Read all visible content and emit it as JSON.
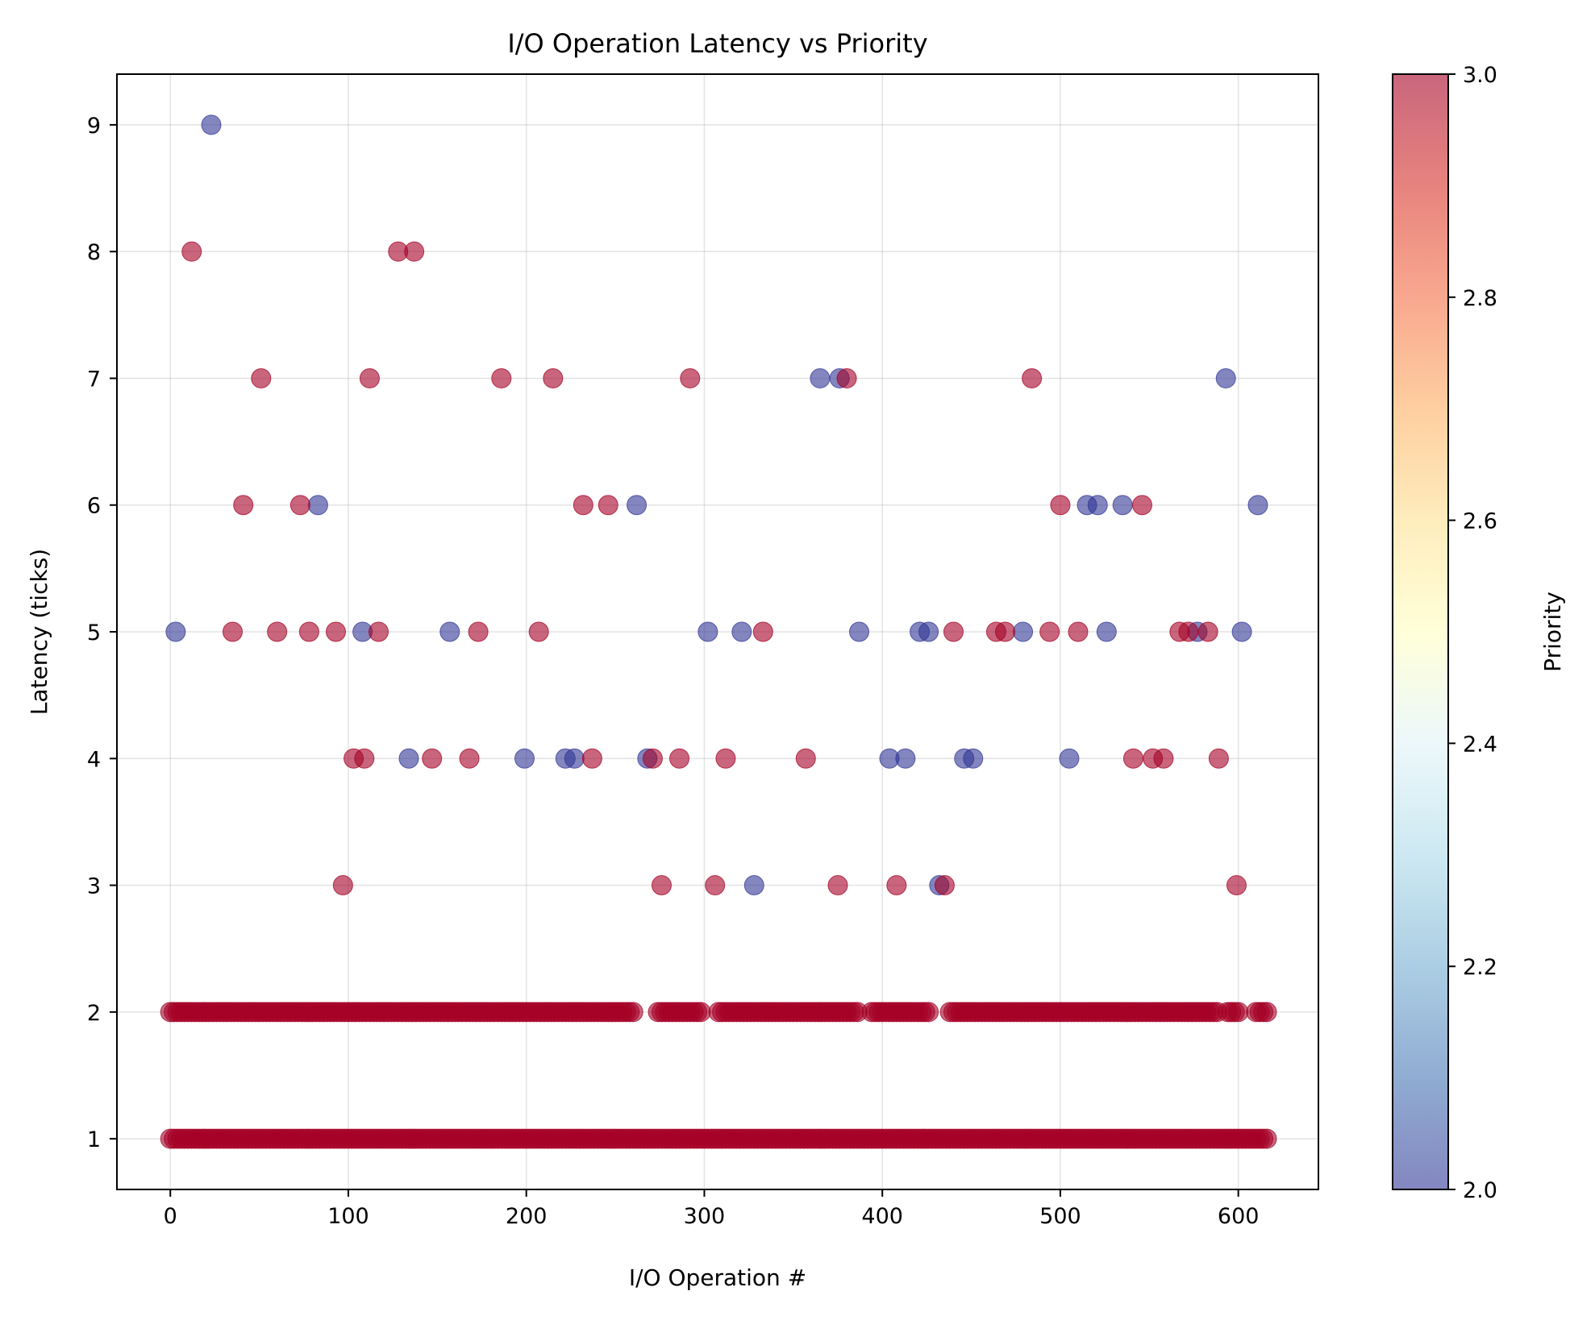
{
  "chart_data": {
    "type": "scatter",
    "title": "I/O Operation Latency vs Priority",
    "xlabel": "I/O Operation #",
    "ylabel": "Latency (ticks)",
    "xlim": [
      -30,
      645
    ],
    "ylim": [
      0.6,
      9.4
    ],
    "x_ticks": [
      0,
      100,
      200,
      300,
      400,
      500,
      600
    ],
    "y_ticks": [
      1,
      2,
      3,
      4,
      5,
      6,
      7,
      8,
      9
    ],
    "grid": true,
    "colorbar": {
      "label": "Priority",
      "min": 2.0,
      "max": 3.0,
      "ticks": [
        "2.0",
        "2.2",
        "2.4",
        "2.6",
        "2.8",
        "3.0"
      ],
      "colormap": "RdYlBu_r",
      "low_color": "#313695",
      "high_color": "#a50026"
    },
    "marker_alpha": 0.6,
    "color_scale": "priority",
    "series": [
      {
        "priority": 2,
        "color": "#313695",
        "points": [
          [
            3,
            5
          ],
          [
            23,
            9
          ],
          [
            83,
            6
          ],
          [
            108,
            5
          ],
          [
            134,
            4
          ],
          [
            157,
            5
          ],
          [
            199,
            4
          ],
          [
            222,
            4
          ],
          [
            227,
            4
          ],
          [
            262,
            6
          ],
          [
            268,
            4
          ],
          [
            302,
            5
          ],
          [
            321,
            5
          ],
          [
            328,
            3
          ],
          [
            365,
            7
          ],
          [
            376,
            7
          ],
          [
            387,
            5
          ],
          [
            404,
            4
          ],
          [
            413,
            4
          ],
          [
            421,
            5
          ],
          [
            426,
            5
          ],
          [
            432,
            3
          ],
          [
            446,
            4
          ],
          [
            451,
            4
          ],
          [
            479,
            5
          ],
          [
            505,
            4
          ],
          [
            515,
            6
          ],
          [
            521,
            6
          ],
          [
            526,
            5
          ],
          [
            535,
            6
          ],
          [
            577,
            5
          ],
          [
            593,
            7
          ],
          [
            602,
            5
          ],
          [
            611,
            6
          ]
        ]
      },
      {
        "priority": 3,
        "color": "#a50026",
        "points": [
          [
            12,
            8
          ],
          [
            35,
            5
          ],
          [
            41,
            6
          ],
          [
            51,
            7
          ],
          [
            60,
            5
          ],
          [
            73,
            6
          ],
          [
            78,
            5
          ],
          [
            93,
            5
          ],
          [
            97,
            3
          ],
          [
            103,
            4
          ],
          [
            109,
            4
          ],
          [
            112,
            7
          ],
          [
            117,
            5
          ],
          [
            128,
            8
          ],
          [
            137,
            8
          ],
          [
            147,
            4
          ],
          [
            168,
            4
          ],
          [
            173,
            5
          ],
          [
            186,
            7
          ],
          [
            207,
            5
          ],
          [
            215,
            7
          ],
          [
            232,
            6
          ],
          [
            237,
            4
          ],
          [
            246,
            6
          ],
          [
            271,
            4
          ],
          [
            276,
            3
          ],
          [
            286,
            4
          ],
          [
            292,
            7
          ],
          [
            306,
            3
          ],
          [
            312,
            4
          ],
          [
            333,
            5
          ],
          [
            357,
            4
          ],
          [
            375,
            3
          ],
          [
            380,
            7
          ],
          [
            408,
            3
          ],
          [
            435,
            3
          ],
          [
            440,
            5
          ],
          [
            464,
            5
          ],
          [
            469,
            5
          ],
          [
            484,
            7
          ],
          [
            494,
            5
          ],
          [
            500,
            6
          ],
          [
            510,
            5
          ],
          [
            541,
            4
          ],
          [
            546,
            6
          ],
          [
            552,
            4
          ],
          [
            558,
            4
          ],
          [
            567,
            5
          ],
          [
            572,
            5
          ],
          [
            583,
            5
          ],
          [
            589,
            4
          ],
          [
            599,
            3
          ]
        ]
      }
    ],
    "dense_rows": [
      {
        "latency": 1,
        "priority": 3,
        "color": "#a50026",
        "x_range": [
          0,
          616
        ],
        "gaps": []
      },
      {
        "latency": 2,
        "priority": 3,
        "color": "#a50026",
        "x_range": [
          0,
          616
        ],
        "gaps": [
          [
            262,
            272
          ],
          [
            299,
            306
          ],
          [
            387,
            393
          ],
          [
            428,
            436
          ],
          [
            589,
            592
          ],
          [
            602,
            608
          ]
        ]
      }
    ]
  }
}
